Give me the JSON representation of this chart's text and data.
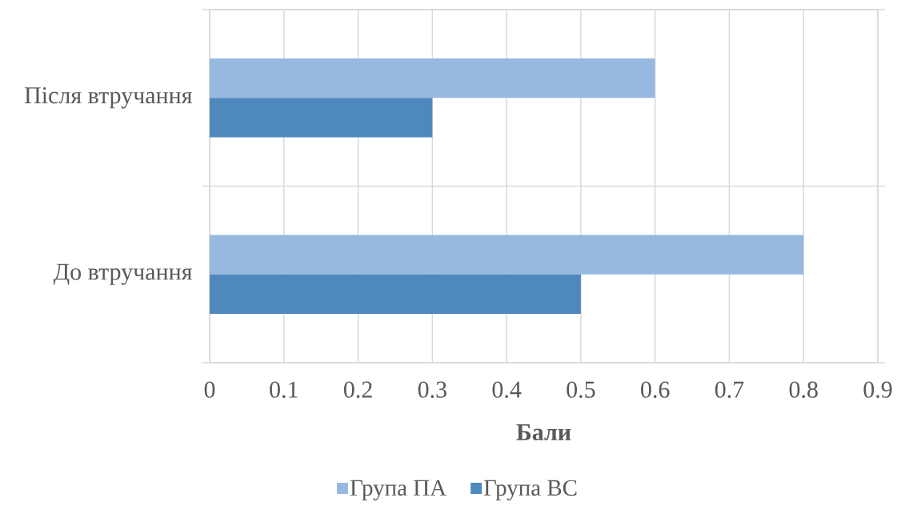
{
  "chart_data": {
    "type": "bar",
    "orientation": "horizontal",
    "xlabel": "Бали",
    "categories": [
      "Після втручання",
      "До втручання"
    ],
    "series": [
      {
        "name": "Група ПА",
        "color": "#97b9e0",
        "values": [
          0.6,
          0.8
        ]
      },
      {
        "name": "Група ВС",
        "color": "#4f88bd",
        "values": [
          0.3,
          0.5
        ]
      }
    ],
    "xlim": [
      0,
      0.9
    ],
    "xticks": [
      0,
      0.1,
      0.2,
      0.3,
      0.4,
      0.5,
      0.6,
      0.7,
      0.8,
      0.9
    ],
    "grid": true,
    "legend": "bottom"
  }
}
